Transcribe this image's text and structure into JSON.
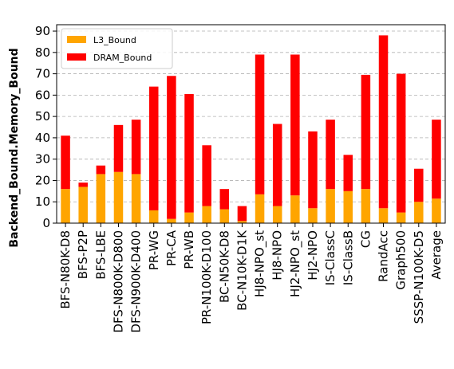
{
  "chart_data": {
    "type": "bar",
    "stacked": true,
    "title": "",
    "xlabel": "",
    "ylabel": "Backend_Bound.Memory_Bound",
    "ylim": [
      0,
      93
    ],
    "yticks": [
      0,
      10,
      20,
      30,
      40,
      50,
      60,
      70,
      80,
      90
    ],
    "grid": "horizontal-dashed",
    "legend_position": "top-left",
    "categories": [
      "BFS-N80K-D8",
      "BFS-P2P",
      "BFS-LBE",
      "DFS-N800K-D800",
      "DFS-N900K-D400",
      "PR-WG",
      "PR-CA",
      "PR-WB",
      "PR-N100K-D100",
      "BC-N50K-D8",
      "BC-N10K-D1K",
      "HJ8-NPO_st",
      "HJ8-NPO",
      "HJ2-NPO_st",
      "HJ2-NPO",
      "IS-ClassC",
      "IS-ClassB",
      "CG",
      "RandAcc",
      "Graph500",
      "SSSP-N100K-D5",
      "Average"
    ],
    "series": [
      {
        "name": "L3_Bound",
        "color": "#FFA500",
        "values": [
          16,
          17,
          23,
          24,
          23,
          6,
          2,
          5,
          8,
          6.5,
          1,
          13.5,
          8,
          13,
          7,
          16,
          15,
          16,
          7,
          5,
          10,
          11.5
        ]
      },
      {
        "name": "DRAM_Bound",
        "color": "#FF0000",
        "values": [
          25,
          2,
          4,
          22,
          25.5,
          58,
          67,
          55.5,
          28.5,
          9.5,
          7,
          65.5,
          38.5,
          66,
          36,
          32.5,
          17,
          53.5,
          81,
          65,
          15.5,
          37
        ]
      }
    ]
  }
}
